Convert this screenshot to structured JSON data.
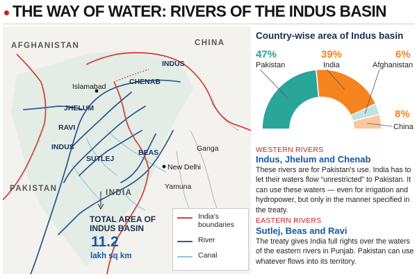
{
  "header": {
    "title": "THE WAY OF WATER: RIVERS OF THE INDUS BASIN"
  },
  "map": {
    "countries": {
      "afghanistan": "AFGHANISTAN",
      "china": "CHINA",
      "pakistan": "PAKISTAN",
      "india": "INDIA"
    },
    "rivers": {
      "indus_north": "INDUS",
      "chenab": "CHENAB",
      "jhelum": "JHELUM",
      "ravi": "RAVI",
      "indus_south": "INDUS",
      "beas": "BEAS",
      "sutlej": "SUTLEJ",
      "ganga": "Ganga",
      "yamuna": "Yamuna"
    },
    "cities": {
      "islamabad": "Islamabad",
      "new_delhi": "New Delhi"
    },
    "total": {
      "label_line1": "TOTAL AREA OF",
      "label_line2": "INDUS BASIN",
      "value": "11.2",
      "unit": "lakh sq km"
    },
    "legend": {
      "boundaries_line1": "India's",
      "boundaries_line2": "boundaries",
      "river": "River",
      "canal": "Canal"
    },
    "colors": {
      "boundary": "#d0443a",
      "river": "#2d5c8f",
      "canal": "#8fc7dc",
      "land": "#f4f2ee"
    }
  },
  "chart": {
    "title": "Country-wise area of Indus basin",
    "labels": {
      "pakistan_pct": "47%",
      "pakistan": "Pakistan",
      "india_pct": "39%",
      "india": "India",
      "afghanistan_pct": "6%",
      "afghanistan": "Afghanistan",
      "china_pct": "8%",
      "china": "China"
    }
  },
  "chart_data": {
    "type": "pie",
    "title": "Country-wise area of Indus basin",
    "categories": [
      "Pakistan",
      "India",
      "Afghanistan",
      "China"
    ],
    "values": [
      47,
      39,
      6,
      8
    ],
    "colors": [
      "#2aa59a",
      "#f5841f",
      "#bfe3df",
      "#f9c8a0"
    ],
    "shape": "semi-donut"
  },
  "western": {
    "heading": "WESTERN RIVERS",
    "subheading": "Indus, Jhelum and Chenab",
    "body": "These rivers are for Pakistan's use. India has to let their waters flow “unrestricted” to Pakistan. It can use these waters — even for irrigation and hydropower, but only in the manner specified in the treaty."
  },
  "eastern": {
    "heading": "EASTERN RIVERS",
    "subheading": "Sutlej, Beas and Ravi",
    "body": "The treaty gives India full rights over the waters of the eastern rivers in Punjab. Pakistan can use whatever flows into its territory."
  }
}
